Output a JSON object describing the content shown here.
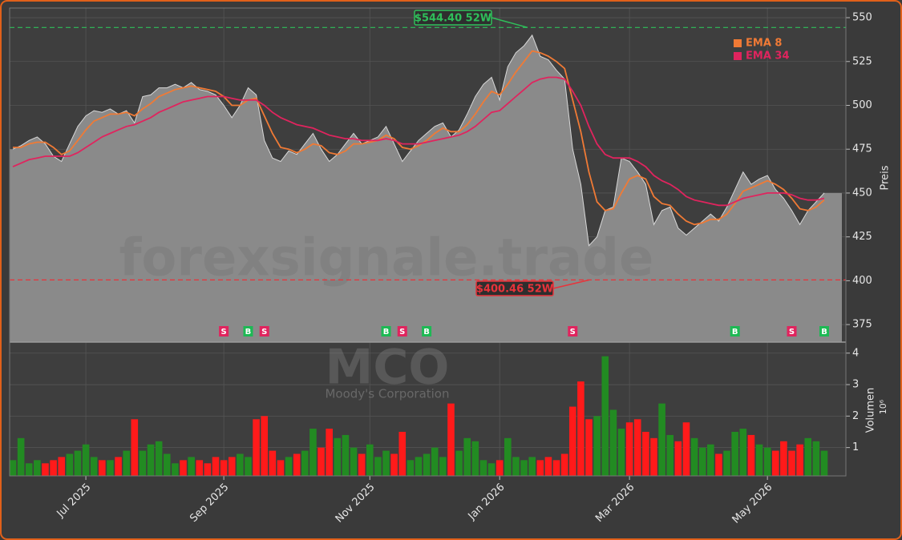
{
  "chart_data": [
    {
      "type": "area",
      "y_label": "Preis",
      "watermark": "forexsignale.trade",
      "color": "#8a8a8a",
      "line_color": "#d8d8d8",
      "values": [
        475,
        477,
        480,
        482,
        478,
        471,
        468,
        478,
        488,
        494,
        497,
        496,
        498,
        495,
        497,
        490,
        505,
        506,
        510,
        510,
        512,
        510,
        513,
        509,
        508,
        506,
        500,
        493,
        500,
        510,
        506,
        480,
        470,
        468,
        474,
        472,
        478,
        484,
        475,
        468,
        472,
        478,
        484,
        478,
        480,
        482,
        488,
        478,
        468,
        474,
        480,
        484,
        488,
        490,
        482,
        486,
        495,
        505,
        512,
        516,
        503,
        522,
        530,
        534,
        540,
        528,
        526,
        520,
        515,
        475,
        455,
        420,
        425,
        440,
        442,
        470,
        468,
        462,
        455,
        432,
        440,
        442,
        430,
        426,
        430,
        434,
        438,
        434,
        442,
        452,
        462,
        455,
        458,
        460,
        452,
        447,
        440,
        432,
        440,
        445,
        450
      ],
      "series": [
        {
          "name": "EMA 8",
          "color": "#f07a35",
          "values": [
            476,
            476,
            478,
            479,
            479,
            476,
            472,
            474,
            480,
            486,
            491,
            493,
            495,
            495,
            496,
            494,
            498,
            501,
            505,
            507,
            509,
            510,
            511,
            510,
            509,
            508,
            505,
            500,
            500,
            503,
            504,
            494,
            484,
            476,
            475,
            473,
            475,
            478,
            477,
            473,
            472,
            474,
            478,
            478,
            479,
            480,
            483,
            481,
            476,
            475,
            477,
            480,
            484,
            487,
            485,
            485,
            489,
            495,
            502,
            508,
            506,
            512,
            519,
            525,
            531,
            530,
            528,
            525,
            521,
            503,
            485,
            462,
            445,
            440,
            441,
            450,
            458,
            460,
            458,
            448,
            444,
            443,
            438,
            434,
            432,
            433,
            435,
            435,
            438,
            444,
            451,
            453,
            455,
            457,
            455,
            452,
            447,
            441,
            440,
            442,
            446
          ]
        },
        {
          "name": "EMA 34",
          "color": "#e0245e",
          "values": [
            465,
            467,
            469,
            470,
            471,
            471,
            471,
            471,
            473,
            476,
            479,
            482,
            484,
            486,
            488,
            489,
            491,
            493,
            496,
            498,
            500,
            502,
            503,
            504,
            505,
            505,
            505,
            504,
            503,
            503,
            503,
            500,
            496,
            493,
            491,
            489,
            488,
            487,
            485,
            483,
            482,
            481,
            481,
            480,
            480,
            480,
            481,
            480,
            478,
            478,
            478,
            479,
            480,
            481,
            482,
            483,
            485,
            488,
            492,
            496,
            497,
            501,
            505,
            509,
            513,
            515,
            516,
            516,
            515,
            508,
            500,
            488,
            478,
            472,
            470,
            470,
            470,
            468,
            465,
            460,
            457,
            455,
            452,
            448,
            446,
            445,
            444,
            443,
            443,
            445,
            447,
            448,
            449,
            450,
            450,
            450,
            449,
            447,
            446,
            446,
            447
          ]
        }
      ],
      "high_52w": 544.4,
      "high_label": "$544.40 52W",
      "high_color": "#2fbf5a",
      "low_52w": 400.46,
      "low_label": "$400.46 52W",
      "low_color": "#e8333a",
      "signals": [
        null,
        null,
        null,
        null,
        null,
        null,
        null,
        null,
        null,
        null,
        null,
        null,
        null,
        null,
        null,
        null,
        null,
        null,
        null,
        null,
        null,
        null,
        null,
        null,
        null,
        null,
        "S",
        null,
        null,
        "B",
        null,
        "S",
        null,
        null,
        null,
        null,
        null,
        null,
        null,
        null,
        null,
        null,
        null,
        null,
        null,
        null,
        "B",
        null,
        "S",
        null,
        null,
        "B",
        null,
        null,
        null,
        null,
        null,
        null,
        null,
        null,
        null,
        null,
        null,
        null,
        null,
        null,
        null,
        null,
        null,
        "S",
        null,
        null,
        null,
        null,
        null,
        null,
        null,
        null,
        null,
        null,
        null,
        null,
        null,
        null,
        null,
        null,
        null,
        null,
        null,
        "B",
        null,
        null,
        null,
        null,
        null,
        null,
        "S",
        null,
        null,
        null,
        "B"
      ],
      "signal_colors": {
        "S": "#e0245e",
        "B": "#1db954"
      },
      "ylim": [
        365,
        555.5
      ],
      "yticks": [
        375,
        400,
        425,
        450,
        475,
        500,
        525,
        550
      ],
      "grid": true,
      "legend": "upper right"
    },
    {
      "type": "bar",
      "y_label": "Volumen",
      "y_unit": "10⁶",
      "watermark": "MCO",
      "subtitle": "Moody's Corporation",
      "up_color": "#228b22",
      "down_color": "#ff1a1a",
      "categories": [
        null,
        null,
        null,
        null,
        null,
        null,
        null,
        null,
        null,
        "Jul 2025",
        null,
        null,
        null,
        null,
        null,
        null,
        null,
        null,
        null,
        null,
        null,
        null,
        null,
        null,
        null,
        null,
        "Sep 2025",
        null,
        null,
        null,
        null,
        null,
        null,
        null,
        null,
        null,
        null,
        null,
        null,
        null,
        null,
        null,
        null,
        null,
        "Nov 2025",
        null,
        null,
        null,
        null,
        null,
        null,
        null,
        null,
        null,
        null,
        null,
        null,
        null,
        null,
        null,
        "Jan 2026",
        null,
        null,
        null,
        null,
        null,
        null,
        null,
        null,
        null,
        null,
        null,
        null,
        null,
        null,
        null,
        "Mar 2026",
        null,
        null,
        null,
        null,
        null,
        null,
        null,
        null,
        null,
        null,
        null,
        null,
        null,
        null,
        null,
        null,
        "May 2026",
        null,
        null,
        null,
        null,
        null,
        null,
        null
      ],
      "values": [
        0.6,
        1.3,
        0.5,
        0.6,
        0.5,
        0.6,
        0.7,
        0.8,
        0.9,
        1.1,
        0.7,
        0.6,
        0.6,
        0.7,
        0.9,
        1.9,
        0.9,
        1.1,
        1.2,
        0.8,
        0.5,
        0.6,
        0.7,
        0.6,
        0.5,
        0.7,
        0.6,
        0.7,
        0.8,
        0.7,
        1.9,
        2.0,
        0.9,
        0.6,
        0.7,
        0.8,
        0.9,
        1.6,
        1.0,
        1.6,
        1.3,
        1.4,
        1.0,
        0.8,
        1.1,
        0.7,
        0.9,
        0.8,
        1.5,
        0.6,
        0.7,
        0.8,
        1.0,
        0.7,
        2.4,
        0.9,
        1.3,
        1.2,
        0.6,
        0.5,
        0.6,
        1.3,
        0.7,
        0.6,
        0.7,
        0.6,
        0.7,
        0.6,
        0.8,
        2.3,
        3.1,
        1.9,
        2.0,
        3.9,
        2.2,
        1.6,
        1.8,
        1.9,
        1.5,
        1.3,
        2.4,
        1.4,
        1.2,
        1.8,
        1.3,
        1.0,
        1.1,
        0.8,
        0.9,
        1.5,
        1.6,
        1.4,
        1.1,
        1.0,
        0.9,
        1.2,
        0.9,
        1.1,
        1.3,
        1.2,
        0.9
      ],
      "ylim": [
        0.1,
        4.35
      ],
      "yticks": [
        1,
        2,
        3,
        4
      ],
      "grid": true
    }
  ]
}
